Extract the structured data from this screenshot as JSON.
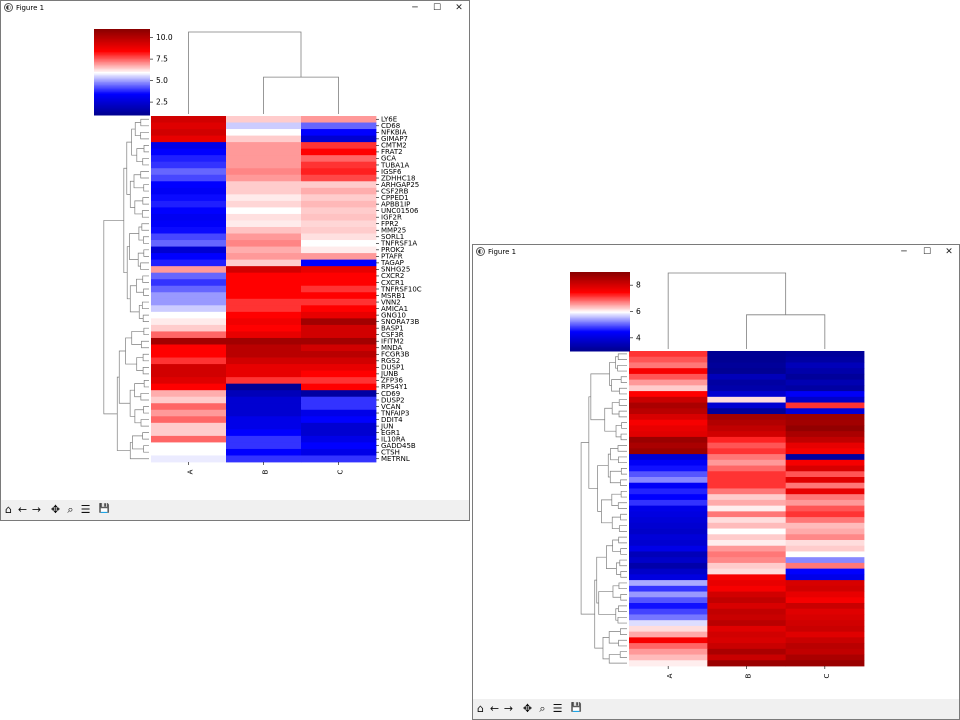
{
  "window1": {
    "title": "Figure 1",
    "btn_min": "─",
    "btn_max": "☐",
    "btn_close": "✕"
  },
  "window2": {
    "title": "Figure 1",
    "btn_min": "─",
    "btn_max": "☐",
    "btn_close": "✕"
  },
  "toolbar": {
    "icons": [
      "home-icon",
      "back-icon",
      "forward-icon",
      "pan-icon",
      "zoom-icon",
      "configure-icon",
      "save-icon"
    ],
    "glyphs": [
      "⌂",
      "←",
      "→",
      "✥",
      "⌕",
      "☰",
      "💾"
    ]
  },
  "colors": {
    "low": "#00008b",
    "mid": "#ffffff",
    "high": "#8b0000"
  },
  "chart_data": [
    {
      "type": "heatmap",
      "colormap": "seismic",
      "columns": [
        "A",
        "B",
        "C"
      ],
      "colorbar_ticks": [
        "10.0",
        "7.5",
        "5.0",
        "2.5"
      ],
      "colorbar_range": [
        1,
        11
      ],
      "rows": [
        "LY6E",
        "CD68",
        "NFKBIA",
        "GIMAP7",
        "CMTM2",
        "FRAT2",
        "GCA",
        "TUBA1A",
        "IGSF6",
        "ZDHHC18",
        "ARHGAP25",
        "CSF2RB",
        "CPPED1",
        "APBB1IP",
        "UNC01506",
        "IGF2R",
        "FPR2",
        "MMP25",
        "SORL1",
        "TNFRSF1A",
        "PROK2",
        "PTAFR",
        "TAGAP",
        "SNHG25",
        "CXCR2",
        "CXCR1",
        "TNFRSF10C",
        "MSRB1",
        "VNN2",
        "AMICA1",
        "GNG10",
        "SNORA73B",
        "BASP1",
        "CSF3R",
        "IFITM2",
        "MNDA",
        "FCGR3B",
        "RGS2",
        "DUSP1",
        "JUNB",
        "ZFP36",
        "RPS4Y1",
        "CD69",
        "DUSP2",
        "VCAN",
        "TNFAIP3",
        "DDIT4",
        "JUN",
        "EGR1",
        "IL10RA",
        "GADD45B",
        "CTSH",
        "METRNL"
      ],
      "values": [
        [
          9.5,
          6.5,
          7.0
        ],
        [
          9.2,
          5.5,
          4.5
        ],
        [
          9.5,
          6.0,
          3.5
        ],
        [
          9.0,
          6.5,
          2.5
        ],
        [
          3.0,
          7.0,
          8.0
        ],
        [
          3.5,
          7.0,
          8.5
        ],
        [
          3.8,
          7.0,
          7.5
        ],
        [
          4.0,
          7.0,
          8.0
        ],
        [
          4.5,
          7.2,
          8.2
        ],
        [
          4.2,
          7.0,
          7.8
        ],
        [
          3.5,
          6.5,
          6.5
        ],
        [
          3.3,
          6.5,
          6.8
        ],
        [
          3.6,
          6.2,
          6.5
        ],
        [
          3.8,
          6.4,
          6.7
        ],
        [
          3.5,
          6.0,
          6.5
        ],
        [
          3.2,
          6.3,
          6.6
        ],
        [
          3.4,
          6.2,
          6.4
        ],
        [
          3.6,
          6.6,
          6.5
        ],
        [
          4.2,
          7.0,
          6.3
        ],
        [
          4.5,
          7.2,
          6.0
        ],
        [
          2.5,
          6.8,
          6.2
        ],
        [
          3.5,
          7.0,
          7.0
        ],
        [
          3.8,
          6.5,
          3.5
        ],
        [
          7.0,
          9.5,
          9.0
        ],
        [
          4.5,
          8.5,
          8.5
        ],
        [
          4.0,
          8.5,
          8.5
        ],
        [
          4.5,
          8.5,
          8.0
        ],
        [
          5.0,
          8.5,
          8.5
        ],
        [
          5.0,
          8.0,
          8.0
        ],
        [
          5.5,
          8.0,
          8.5
        ],
        [
          6.0,
          8.5,
          9.0
        ],
        [
          6.2,
          8.8,
          10.5
        ],
        [
          6.5,
          8.5,
          9.5
        ],
        [
          7.5,
          9.0,
          9.5
        ],
        [
          10.5,
          10.5,
          10.5
        ],
        [
          8.5,
          10.0,
          9.5
        ],
        [
          8.5,
          10.0,
          10.0
        ],
        [
          8.0,
          9.5,
          9.5
        ],
        [
          9.5,
          9.0,
          9.0
        ],
        [
          9.5,
          9.0,
          8.5
        ],
        [
          9.2,
          8.0,
          8.0
        ],
        [
          8.5,
          1.2,
          8.5
        ],
        [
          6.8,
          2.0,
          1.5
        ],
        [
          6.5,
          2.5,
          4.0
        ],
        [
          7.5,
          2.5,
          4.0
        ],
        [
          7.0,
          2.5,
          3.0
        ],
        [
          7.5,
          3.0,
          3.5
        ],
        [
          6.5,
          3.0,
          2.5
        ],
        [
          6.5,
          3.5,
          2.5
        ],
        [
          7.5,
          4.0,
          3.0
        ],
        [
          6.0,
          4.0,
          3.5
        ],
        [
          6.0,
          3.5,
          3.0
        ],
        [
          5.8,
          4.0,
          4.0
        ]
      ]
    },
    {
      "type": "heatmap",
      "colormap": "seismic",
      "columns": [
        "A",
        "B",
        "C"
      ],
      "colorbar_ticks": [
        "8",
        "6",
        "4"
      ],
      "colorbar_range": [
        3,
        9
      ],
      "values": [
        [
          7.2,
          3.1,
          3.2
        ],
        [
          7.0,
          3.1,
          3.3
        ],
        [
          6.8,
          3.2,
          3.6
        ],
        [
          7.6,
          3.1,
          3.4
        ],
        [
          7.0,
          3.6,
          3.2
        ],
        [
          6.6,
          3.3,
          3.5
        ],
        [
          6.3,
          3.4,
          3.3
        ],
        [
          7.5,
          3.9,
          4.4
        ],
        [
          8.2,
          6.2,
          3.8
        ],
        [
          8.6,
          3.9,
          7.2
        ],
        [
          8.4,
          3.2,
          4.0
        ],
        [
          8.0,
          8.7,
          8.8
        ],
        [
          7.6,
          8.5,
          8.7
        ],
        [
          7.8,
          8.3,
          8.9
        ],
        [
          7.9,
          8.1,
          8.6
        ],
        [
          8.8,
          7.3,
          8.3
        ],
        [
          8.6,
          7.0,
          7.8
        ],
        [
          8.8,
          7.2,
          7.6
        ],
        [
          4.0,
          6.8,
          3.3
        ],
        [
          4.4,
          6.6,
          7.6
        ],
        [
          4.6,
          6.9,
          8.0
        ],
        [
          5.0,
          7.2,
          7.0
        ],
        [
          5.3,
          7.2,
          7.9
        ],
        [
          4.4,
          7.2,
          6.8
        ],
        [
          4.7,
          6.8,
          7.8
        ],
        [
          4.5,
          6.3,
          6.8
        ],
        [
          4.8,
          6.5,
          6.6
        ],
        [
          4.2,
          6.1,
          7.0
        ],
        [
          4.1,
          6.8,
          7.2
        ],
        [
          4.0,
          6.2,
          6.8
        ],
        [
          3.9,
          6.4,
          6.4
        ],
        [
          3.8,
          6.0,
          6.5
        ],
        [
          4.0,
          6.3,
          6.7
        ],
        [
          3.9,
          6.1,
          6.2
        ],
        [
          4.2,
          6.6,
          6.3
        ],
        [
          3.6,
          6.8,
          6.0
        ],
        [
          3.8,
          6.7,
          5.3
        ],
        [
          3.4,
          6.3,
          6.8
        ],
        [
          3.8,
          6.2,
          4.5
        ],
        [
          4.1,
          7.6,
          4.2
        ],
        [
          5.5,
          7.8,
          8.0
        ],
        [
          4.8,
          7.6,
          8.1
        ],
        [
          5.4,
          8.1,
          7.8
        ],
        [
          5.0,
          8.3,
          7.6
        ],
        [
          4.6,
          8.0,
          8.2
        ],
        [
          4.9,
          8.3,
          7.9
        ],
        [
          5.2,
          8.2,
          8.0
        ],
        [
          5.8,
          8.4,
          8.1
        ],
        [
          6.2,
          7.9,
          8.2
        ],
        [
          6.5,
          8.1,
          7.9
        ],
        [
          7.6,
          8.0,
          8.2
        ],
        [
          6.9,
          8.2,
          8.4
        ],
        [
          6.6,
          8.6,
          8.3
        ],
        [
          6.4,
          8.2,
          8.6
        ],
        [
          6.1,
          8.8,
          8.8
        ]
      ]
    }
  ]
}
